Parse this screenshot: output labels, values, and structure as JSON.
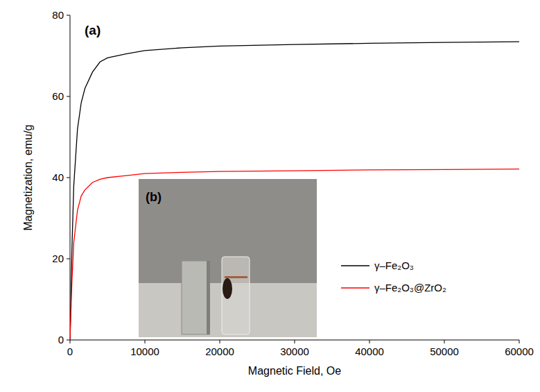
{
  "chart_data": {
    "type": "line",
    "x_label": "Magnetic Field, Oe",
    "y_label": "Magnetization, emu/g",
    "annotations": [
      "(a)",
      "(b)"
    ],
    "x": [
      0,
      250,
      500,
      1000,
      1500,
      2000,
      3000,
      4000,
      5000,
      7500,
      10000,
      15000,
      20000,
      30000,
      40000,
      50000,
      60000
    ],
    "series": [
      {
        "name": "γ–Fe₂O₃",
        "color": "#000000",
        "values": [
          0,
          22,
          38,
          52,
          58.5,
          62,
          66,
          68.5,
          69.5,
          70.5,
          71.3,
          72,
          72.4,
          72.8,
          73.1,
          73.3,
          73.5
        ]
      },
      {
        "name": "γ–Fe₂O₃@ZrO₂",
        "color": "#ff0000",
        "values": [
          0,
          14,
          24,
          32,
          35.5,
          37,
          38.8,
          39.6,
          40,
          40.5,
          41,
          41.3,
          41.5,
          41.7,
          41.9,
          42,
          42.1
        ]
      }
    ],
    "xlim": [
      0,
      60000
    ],
    "xticks": [
      0,
      10000,
      20000,
      30000,
      40000,
      50000,
      60000
    ],
    "ylim": [
      0,
      80
    ],
    "yticks": [
      0,
      20,
      40,
      60,
      80
    ],
    "grid": false,
    "legend": "right"
  }
}
